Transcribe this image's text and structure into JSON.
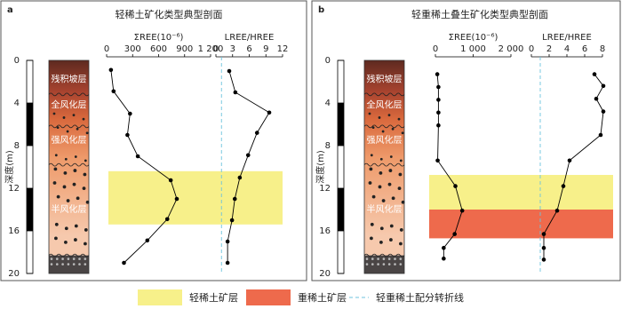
{
  "chart_data": [
    {
      "type": "profile",
      "label": "a",
      "title": "轻稀土矿化类型典型剖面",
      "depth_label": "深度(m)",
      "ylim": [
        0,
        20
      ],
      "yticks": [
        0,
        4,
        8,
        12,
        16,
        20
      ],
      "layers": [
        "残积坡层",
        "全风化层",
        "强风化层",
        "半风化层"
      ],
      "bands": [
        {
          "from": 10.4,
          "to": 15.4,
          "color": "#f7f08a"
        }
      ],
      "charts": [
        {
          "type": "line",
          "x_label": "ΣREE(10⁻⁶)",
          "xlim": [
            0,
            1200
          ],
          "xticks": [
            0,
            300,
            600,
            900,
            {
              "value": 1200,
              "label": "1 200"
            }
          ],
          "color": "#000000",
          "depth": [
            0.9,
            2.9,
            5,
            7,
            9,
            11.25,
            13,
            14.9,
            16.9,
            19
          ],
          "values": [
            50,
            80,
            270,
            240,
            360,
            740,
            810,
            700,
            470,
            200
          ]
        },
        {
          "type": "line",
          "x_label": "LREE/HREE",
          "xlim": [
            0,
            12
          ],
          "xticks": [
            0,
            3,
            6,
            9,
            12
          ],
          "color": "#000000",
          "ref_x": 1,
          "depth": [
            1,
            3,
            4.9,
            6.8,
            8.9,
            11,
            13,
            15,
            17,
            19
          ],
          "values": [
            2.4,
            3.5,
            9.6,
            7.4,
            5.8,
            4.3,
            3.4,
            2.9,
            2.1,
            2.1
          ]
        }
      ]
    },
    {
      "type": "profile",
      "label": "b",
      "title": "轻重稀土叠生矿化类型典型剖面",
      "depth_label": "深度(m)",
      "ylim": [
        0,
        20
      ],
      "yticks": [
        0,
        4,
        8,
        12,
        16,
        20
      ],
      "layers": [
        "残积坡层",
        "全风化层",
        "强风化层",
        "半风化层"
      ],
      "bands": [
        {
          "from": 10.75,
          "to": 14,
          "color": "#f7f08a"
        },
        {
          "from": 14,
          "to": 16.7,
          "color": "#ee6a4c"
        }
      ],
      "charts": [
        {
          "type": "line",
          "x_label": "ΣREE(10⁻⁶)",
          "xlim": [
            0,
            2000
          ],
          "xticks": [
            0,
            {
              "value": 1000,
              "label": "1 000"
            },
            {
              "value": 2000,
              "label": "2 000"
            }
          ],
          "color": "#000000",
          "depth": [
            1.3,
            2.5,
            3.7,
            4.9,
            6.1,
            9.4,
            11.8,
            14.1,
            16.3,
            17.6,
            18.6
          ],
          "values": [
            50,
            80,
            80,
            80,
            80,
            60,
            530,
            710,
            510,
            220,
            220
          ]
        },
        {
          "type": "line",
          "x_label": "LREE/HREE",
          "xlim": [
            0,
            8
          ],
          "xticks": [
            0,
            2,
            4,
            6,
            8
          ],
          "color": "#000000",
          "ref_x": 1,
          "depth": [
            1.3,
            2.4,
            3.6,
            4.8,
            7,
            9.4,
            11.8,
            14.1,
            16.3,
            17.6,
            18.7
          ],
          "values": [
            7.1,
            8.1,
            7.3,
            8.1,
            7.8,
            4.3,
            3.6,
            2.9,
            1.4,
            1.4,
            1.4
          ]
        }
      ]
    }
  ],
  "legend": [
    {
      "label": "轻稀土矿层",
      "color": "#f7f08a"
    },
    {
      "label": "重稀土矿层",
      "color": "#ee6a4c"
    },
    {
      "label": "轻重稀土配分转折线",
      "color": "#6cc3dd"
    }
  ]
}
